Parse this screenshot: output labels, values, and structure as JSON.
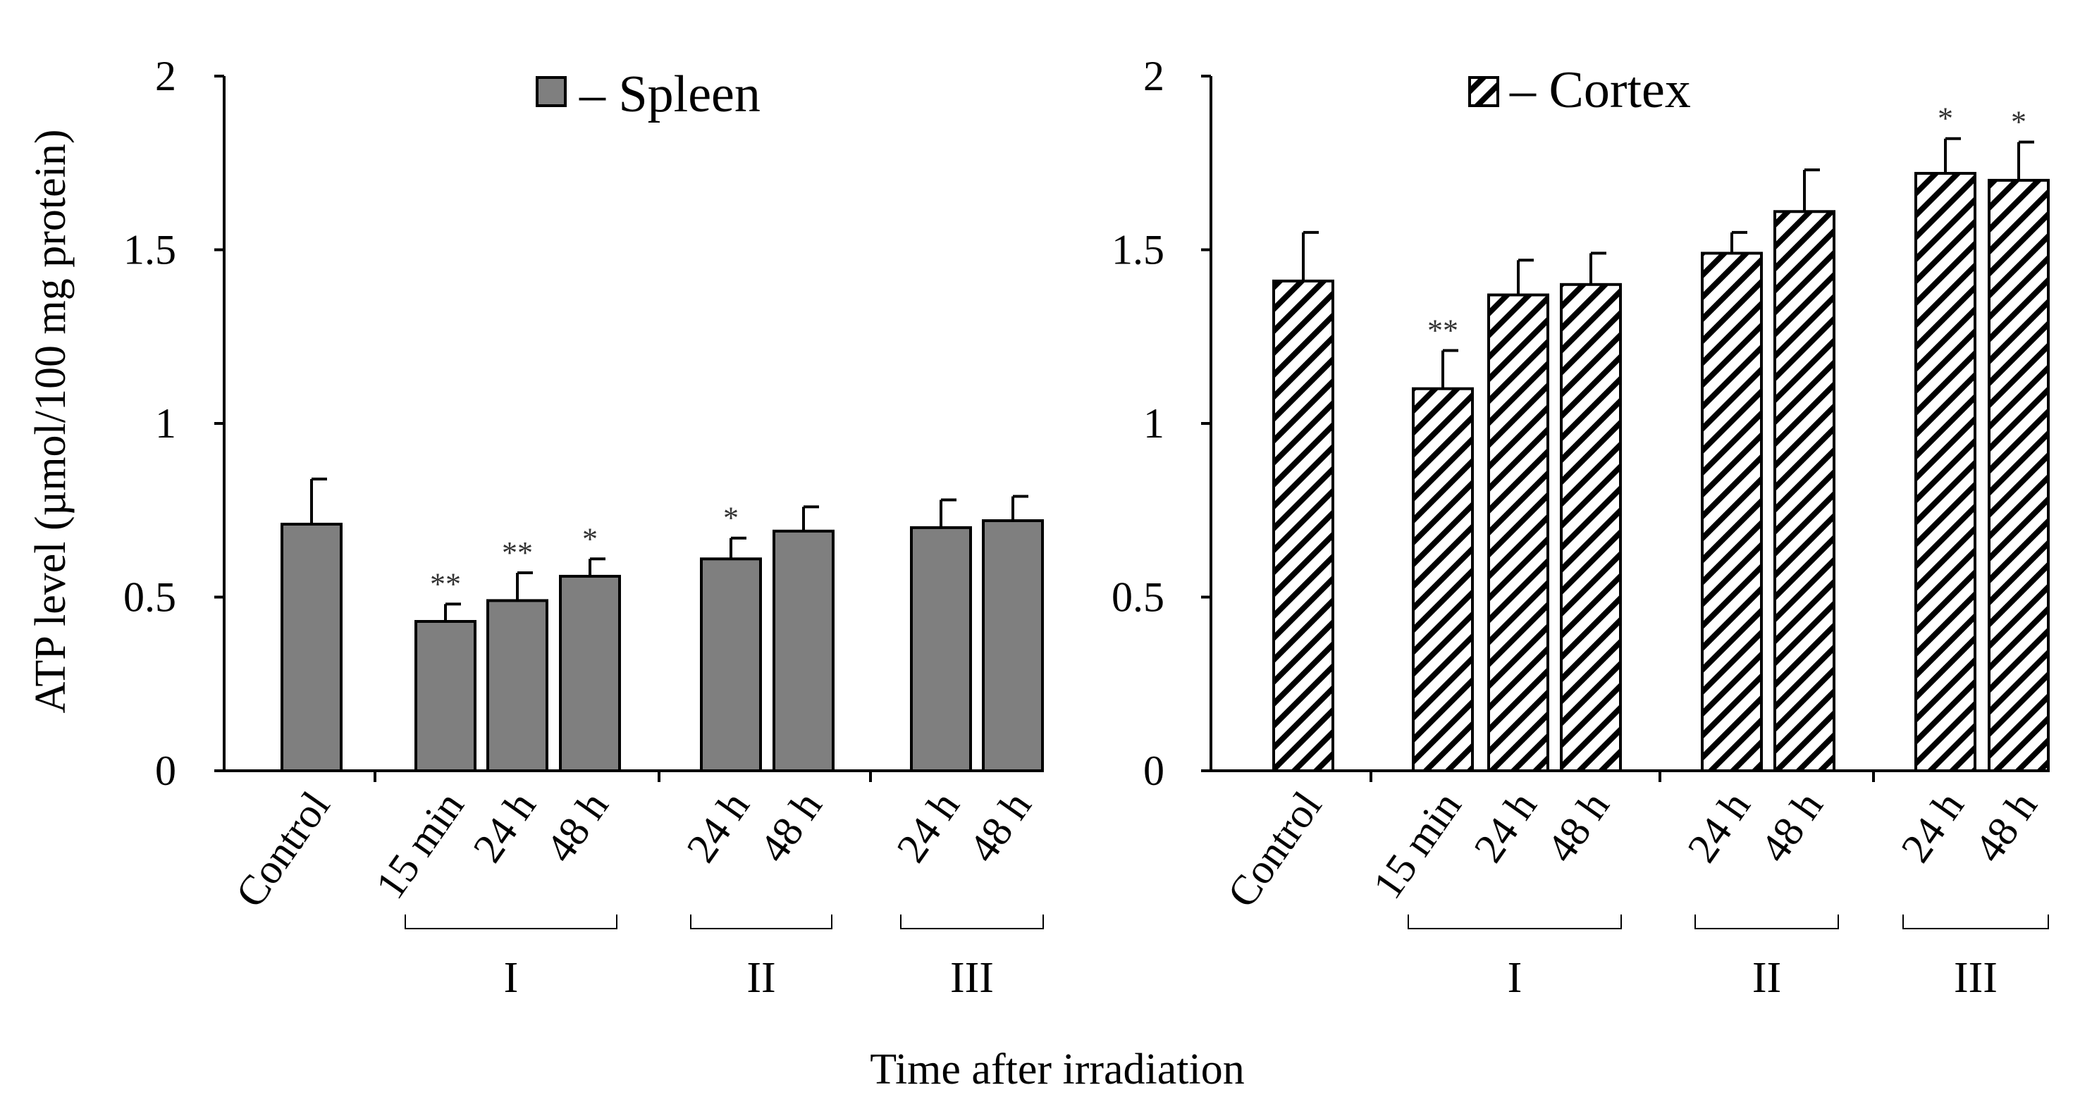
{
  "figure": {
    "xlabel": "Time after irradiation",
    "ylabel": "ATP level (µmol/100 mg protein)"
  },
  "colors": {
    "spleen_fill": "#7f7f7f",
    "cortex_stripe": "#000000",
    "axis": "#000000",
    "background": "#ffffff"
  },
  "chart_data": [
    {
      "type": "bar",
      "title": "Spleen",
      "legend": {
        "label": "– Spleen",
        "pattern": "solid gray",
        "position": "top-center"
      },
      "ylabel": "ATP level (µmol/100 mg protein)",
      "xlabel": "Time after irradiation",
      "ylim": [
        0,
        2
      ],
      "yticks": [
        "0",
        "0.5",
        "1",
        "1.5",
        "2"
      ],
      "categories": [
        "Control",
        "15 min",
        "24 h",
        "48 h",
        "24 h",
        "48 h",
        "24 h",
        "48 h"
      ],
      "groups": [
        {
          "label": "I",
          "members": [
            1,
            2,
            3
          ]
        },
        {
          "label": "II",
          "members": [
            4,
            5
          ]
        },
        {
          "label": "III",
          "members": [
            6,
            7
          ]
        }
      ],
      "values": [
        0.71,
        0.43,
        0.49,
        0.56,
        0.61,
        0.69,
        0.7,
        0.72
      ],
      "errors": [
        0.13,
        0.05,
        0.08,
        0.05,
        0.06,
        0.07,
        0.08,
        0.07
      ],
      "significance": [
        "",
        "**",
        "**",
        "*",
        "*",
        "",
        "",
        ""
      ]
    },
    {
      "type": "bar",
      "title": "Cortex",
      "legend": {
        "label": "– Cortex",
        "pattern": "diagonal hatch",
        "position": "top-center"
      },
      "ylabel": "",
      "xlabel": "Time after irradiation",
      "ylim": [
        0,
        2
      ],
      "yticks": [
        "0",
        "0.5",
        "1",
        "1.5",
        "2"
      ],
      "categories": [
        "Control",
        "15 min",
        "24 h",
        "48 h",
        "24 h",
        "48 h",
        "24 h",
        "48 h"
      ],
      "groups": [
        {
          "label": "I",
          "members": [
            1,
            2,
            3
          ]
        },
        {
          "label": "II",
          "members": [
            4,
            5
          ]
        },
        {
          "label": "III",
          "members": [
            6,
            7
          ]
        }
      ],
      "values": [
        1.41,
        1.1,
        1.37,
        1.4,
        1.49,
        1.61,
        1.72,
        1.7
      ],
      "errors": [
        0.14,
        0.11,
        0.1,
        0.09,
        0.06,
        0.12,
        0.1,
        0.11
      ],
      "significance": [
        "",
        "**",
        "",
        "",
        "",
        "",
        "*",
        "*"
      ]
    }
  ]
}
